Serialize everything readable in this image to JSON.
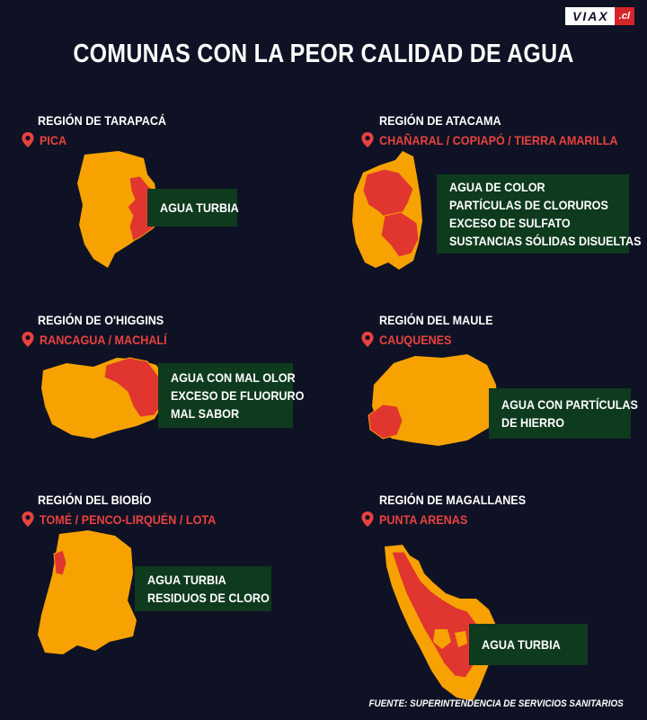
{
  "brand": {
    "main": "VIAX",
    "suffix": ".cl"
  },
  "title": "COMUNAS CON LA PEOR CALIDAD DE AGUA",
  "regions": [
    {
      "name": "REGIÓN DE TARAPACÁ",
      "places": "PICA",
      "issues": [
        "AGUA TURBIA"
      ]
    },
    {
      "name": "REGIÓN DE ATACAMA",
      "places": "CHAÑARAL / COPIAPÓ / TIERRA AMARILLA",
      "issues": [
        "AGUA DE COLOR",
        "PARTÍCULAS DE CLORUROS",
        "EXCESO DE SULFATO",
        "SUSTANCIAS SÓLIDAS DISUELTAS"
      ]
    },
    {
      "name": "REGIÓN DE O'HIGGINS",
      "places": "RANCAGUA / MACHALÍ",
      "issues": [
        "AGUA CON MAL OLOR",
        "EXCESO DE FLUORURO",
        "MAL SABOR"
      ]
    },
    {
      "name": "REGIÓN DEL MAULE",
      "places": "CAUQUENES",
      "issues": [
        "AGUA CON PARTÍCULAS",
        "DE HIERRO"
      ]
    },
    {
      "name": "REGIÓN DEL BIOBÍO",
      "places": "TOMÉ / PENCO-LIRQUÉN / LOTA",
      "issues": [
        "AGUA TURBIA",
        "RESIDUOS DE CLORO"
      ]
    },
    {
      "name": "REGIÓN DE MAGALLANES",
      "places": "PUNTA ARENAS",
      "issues": [
        "AGUA TURBIA"
      ]
    }
  ],
  "source": "FUENTE: SUPERINTENDENCIA DE SERVICIOS SANITARIOS",
  "colors": {
    "background": "#0f1224",
    "map": "#f7a200",
    "highlight": "#e0362f",
    "box": "#0e3a1d",
    "pin": "#e8423f"
  },
  "icons": {
    "pin": "location-pin-icon"
  }
}
